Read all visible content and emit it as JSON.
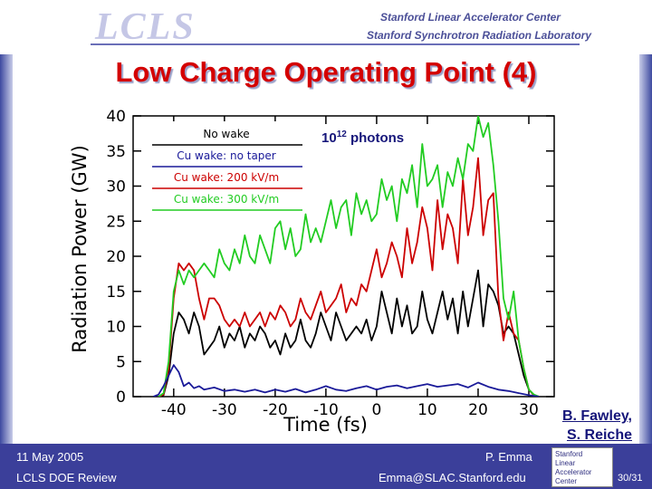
{
  "header": {
    "logo_text": "LCLS",
    "lab_line1": "Stanford Linear Accelerator Center",
    "lab_line2": "Stanford Synchrotron Radiation Laboratory"
  },
  "slide": {
    "title": "Low Charge Operating Point (4)",
    "credit_line1": "B. Fawley,",
    "credit_line2": "S. Reiche"
  },
  "footer": {
    "date": "11 May 2005",
    "event": "LCLS DOE Review",
    "author": "P. Emma",
    "email": "Emma@SLAC.Stanford.edu",
    "stamp_lines": [
      "Stanford",
      "Linear",
      "Accelerator",
      "Center"
    ],
    "page": "30/31"
  },
  "colors": {
    "title": "#d40000",
    "footer_bg": "#3b3f9a",
    "no_wake": "#000000",
    "no_taper": "#1a1a99",
    "wake_200": "#cc0000",
    "wake_300": "#22cc22"
  },
  "chart_data": {
    "type": "line",
    "xlabel": "Time (fs)",
    "ylabel": "Radiation Power (GW)",
    "xlim": [
      -48,
      35
    ],
    "ylim": [
      0,
      40
    ],
    "x_ticks": [
      -40,
      -30,
      -20,
      -10,
      0,
      10,
      20,
      30
    ],
    "y_ticks": [
      0,
      5,
      10,
      15,
      20,
      25,
      30,
      35,
      40
    ],
    "annotation": "10",
    "annotation_sup": "12",
    "annotation_suffix": " photons",
    "legend_position": "top-left",
    "series": [
      {
        "name": "No wake",
        "color": "#000000",
        "x": [
          -43,
          -42,
          -41,
          -40,
          -39,
          -38,
          -37,
          -36,
          -35,
          -34,
          -33,
          -32,
          -31,
          -30,
          -29,
          -28,
          -27,
          -26,
          -25,
          -24,
          -23,
          -22,
          -21,
          -20,
          -19,
          -18,
          -17,
          -16,
          -15,
          -14,
          -13,
          -12,
          -11,
          -10,
          -9,
          -8,
          -7,
          -6,
          -5,
          -4,
          -3,
          -2,
          -1,
          0,
          1,
          2,
          3,
          4,
          5,
          6,
          7,
          8,
          9,
          10,
          11,
          12,
          13,
          14,
          15,
          16,
          17,
          18,
          19,
          20,
          21,
          22,
          23,
          24,
          25,
          26,
          27,
          28,
          29,
          30,
          31,
          32
        ],
        "values": [
          0,
          0.2,
          3,
          9,
          12,
          11,
          9,
          12,
          10,
          6,
          7,
          8,
          10,
          7,
          9,
          8,
          10,
          7,
          9,
          8,
          10,
          9,
          7,
          8,
          6,
          9,
          7,
          8,
          11,
          8,
          7,
          9,
          12,
          10,
          8,
          12,
          10,
          8,
          9,
          10,
          9,
          11,
          8,
          10,
          15,
          12,
          9,
          14,
          10,
          13,
          9,
          10,
          15,
          11,
          9,
          12,
          15,
          11,
          14,
          9,
          15,
          10,
          14,
          18,
          10,
          16,
          15,
          13,
          9,
          10,
          9,
          6,
          3,
          1,
          0.2,
          0
        ]
      },
      {
        "name": "Cu wake: no taper",
        "color": "#1a1a99",
        "x": [
          -44,
          -43,
          -42,
          -41,
          -40,
          -39,
          -38,
          -37,
          -36,
          -35,
          -34,
          -32,
          -30,
          -28,
          -26,
          -24,
          -22,
          -20,
          -18,
          -16,
          -14,
          -12,
          -10,
          -8,
          -6,
          -4,
          -2,
          0,
          2,
          4,
          6,
          8,
          10,
          12,
          14,
          16,
          18,
          20,
          22,
          24,
          26,
          28,
          30,
          32
        ],
        "values": [
          0,
          0.3,
          1.5,
          3,
          4.5,
          3.5,
          1.5,
          2,
          1.2,
          1.5,
          1,
          1.3,
          0.8,
          1,
          0.7,
          1,
          0.6,
          1,
          0.7,
          1.1,
          0.6,
          1,
          1.5,
          1,
          0.8,
          1.2,
          1.5,
          1,
          1.4,
          1.6,
          1.2,
          1.5,
          1.8,
          1.4,
          1.6,
          1.8,
          1.3,
          2,
          1.4,
          1,
          0.8,
          0.5,
          0.2,
          0
        ]
      },
      {
        "name": "Cu wake: 200 kV/m",
        "color": "#cc0000",
        "x": [
          -43,
          -42,
          -41,
          -40,
          -39,
          -38,
          -37,
          -36,
          -35,
          -34,
          -33,
          -32,
          -31,
          -30,
          -29,
          -28,
          -27,
          -26,
          -25,
          -24,
          -23,
          -22,
          -21,
          -20,
          -19,
          -18,
          -17,
          -16,
          -15,
          -14,
          -13,
          -12,
          -11,
          -10,
          -9,
          -8,
          -7,
          -6,
          -5,
          -4,
          -3,
          -2,
          -1,
          0,
          1,
          2,
          3,
          4,
          5,
          6,
          7,
          8,
          9,
          10,
          11,
          12,
          13,
          14,
          15,
          16,
          17,
          18,
          19,
          20,
          21,
          22,
          23,
          24,
          25,
          26,
          27,
          28,
          29,
          30,
          31,
          32
        ],
        "values": [
          0,
          0.3,
          4,
          14,
          19,
          18,
          19,
          18,
          14,
          11,
          14,
          14,
          13,
          11,
          10,
          11,
          10,
          12,
          10,
          11,
          12,
          10,
          12,
          11,
          13,
          12,
          10,
          11,
          14,
          12,
          11,
          13,
          15,
          12,
          13,
          14,
          16,
          12,
          14,
          13,
          16,
          15,
          18,
          21,
          17,
          19,
          22,
          20,
          17,
          24,
          19,
          22,
          27,
          24,
          18,
          28,
          21,
          26,
          24,
          19,
          31,
          23,
          27,
          34,
          23,
          28,
          29,
          14,
          8,
          12,
          9,
          8,
          4,
          1,
          0.2,
          0
        ]
      },
      {
        "name": "Cu wake: 300 kV/m",
        "color": "#22cc22",
        "x": [
          -43,
          -42,
          -41,
          -40,
          -39,
          -38,
          -37,
          -36,
          -35,
          -34,
          -33,
          -32,
          -31,
          -30,
          -29,
          -28,
          -27,
          -26,
          -25,
          -24,
          -23,
          -22,
          -21,
          -20,
          -19,
          -18,
          -17,
          -16,
          -15,
          -14,
          -13,
          -12,
          -11,
          -10,
          -9,
          -8,
          -7,
          -6,
          -5,
          -4,
          -3,
          -2,
          -1,
          0,
          1,
          2,
          3,
          4,
          5,
          6,
          7,
          8,
          9,
          10,
          11,
          12,
          13,
          14,
          15,
          16,
          17,
          18,
          19,
          20,
          21,
          22,
          23,
          24,
          25,
          26,
          27,
          28,
          29,
          30,
          31,
          32
        ],
        "values": [
          0,
          0.5,
          5,
          15,
          18,
          16,
          18,
          17,
          18,
          19,
          18,
          17,
          21,
          19,
          18,
          21,
          19,
          23,
          20,
          19,
          23,
          21,
          19,
          24,
          25,
          21,
          24,
          20,
          21,
          26,
          22,
          24,
          22,
          25,
          28,
          24,
          27,
          28,
          23,
          29,
          26,
          28,
          25,
          26,
          31,
          28,
          30,
          25,
          31,
          29,
          33,
          27,
          36,
          30,
          31,
          33,
          27,
          32,
          30,
          34,
          31,
          36,
          35,
          40,
          37,
          39,
          33,
          25,
          14,
          11,
          15,
          8,
          4,
          1,
          0.3,
          0
        ]
      }
    ]
  }
}
